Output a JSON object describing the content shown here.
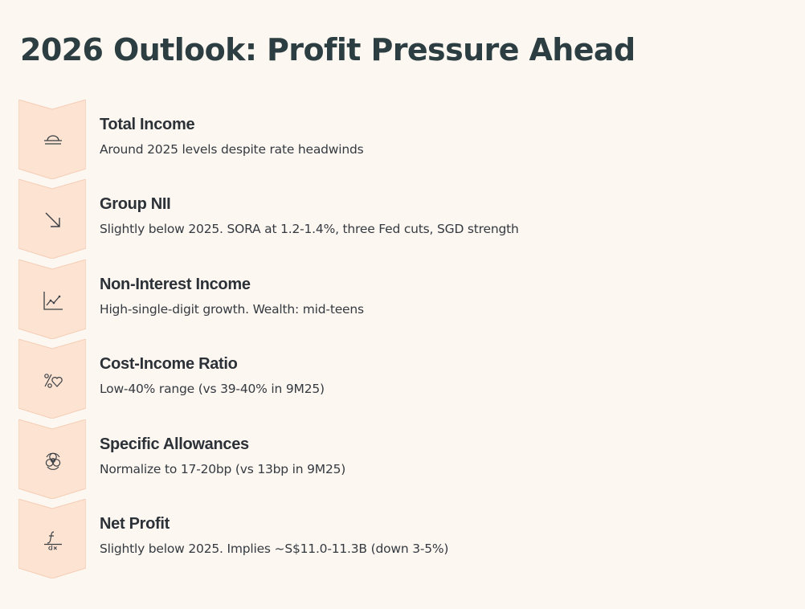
{
  "page": {
    "title": "2026 Outlook: Profit Pressure Ahead"
  },
  "colors": {
    "background": "#fdf7f1",
    "chevron_fill": "#fde3d2",
    "chevron_edge": "#f5cdb4",
    "icon_stroke": "#3a3f44",
    "title_color": "#2c3e41"
  },
  "items": [
    {
      "icon": "dome-lines-icon",
      "title": "Total Income",
      "description": "Around 2025 levels despite rate headwinds"
    },
    {
      "icon": "arrow-down-right-icon",
      "title": "Group NII",
      "description": "Slightly below 2025. SORA at 1.2-1.4%, three Fed cuts, SGD strength"
    },
    {
      "icon": "line-chart-up-icon",
      "title": "Non-Interest Income",
      "description": "High-single-digit growth. Wealth: mid-teens"
    },
    {
      "icon": "percent-heart-icon",
      "title": "Cost-Income Ratio",
      "description": "Low-40% range (vs 39-40% in 9M25)"
    },
    {
      "icon": "biohazard-icon",
      "title": "Specific Allowances",
      "description": "Normalize to 17-20bp (vs 13bp in 9M25)"
    },
    {
      "icon": "function-dx-icon",
      "title": "Net Profit",
      "description": "Slightly below 2025. Implies ~S$11.0-11.3B (down 3-5%)"
    }
  ]
}
